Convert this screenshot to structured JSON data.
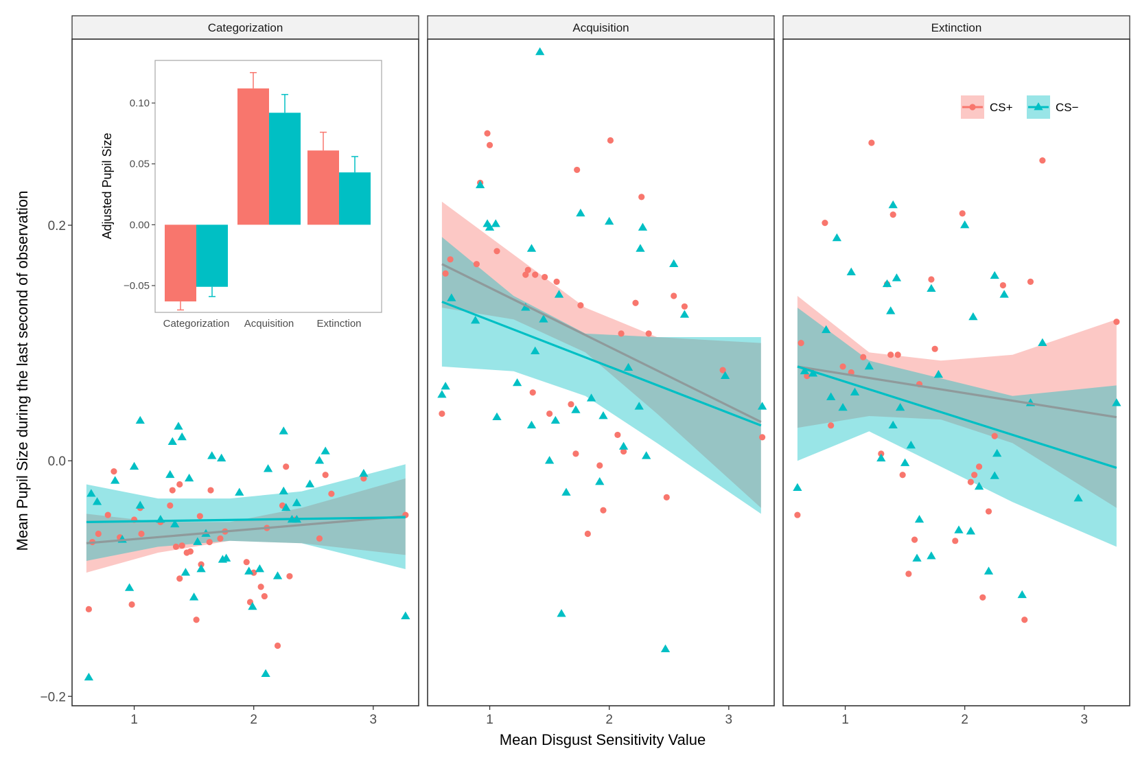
{
  "chart_data": {
    "type": "scatter",
    "xlabel": "Mean Disgust Sensitivity Value",
    "ylabel": "Mean Pupil Size during the last second of observation",
    "x_ticks": [
      1,
      2,
      3
    ],
    "x_tick_labels": [
      "1",
      "2",
      "3"
    ],
    "y_ticks": [
      -0.2,
      0.0,
      0.2
    ],
    "y_tick_labels": [
      "−0.2",
      "0.0",
      "0.2"
    ],
    "xlim": [
      0.48,
      3.38
    ],
    "ylim": [
      -0.208,
      0.358
    ],
    "colors": {
      "cs_plus": "#F8766D",
      "cs_minus": "#00BFC4",
      "overlap": "#8F9A9B"
    },
    "legend": [
      {
        "name": "CS+",
        "shape": "circle",
        "color": "#F8766D"
      },
      {
        "name": "CS−",
        "shape": "triangle",
        "color": "#00BFC4"
      }
    ],
    "legend_position": "top-right of Extinction panel",
    "panels": [
      {
        "title": "Categorization",
        "cs_plus_points": [
          [
            0.62,
            -0.126
          ],
          [
            0.65,
            -0.069
          ],
          [
            0.7,
            -0.062
          ],
          [
            0.78,
            -0.046
          ],
          [
            0.83,
            -0.009
          ],
          [
            0.88,
            -0.065
          ],
          [
            0.98,
            -0.122
          ],
          [
            1.0,
            -0.05
          ],
          [
            1.05,
            -0.04
          ],
          [
            1.06,
            -0.062
          ],
          [
            1.22,
            -0.052
          ],
          [
            1.3,
            -0.038
          ],
          [
            1.32,
            -0.025
          ],
          [
            1.35,
            -0.073
          ],
          [
            1.38,
            -0.1
          ],
          [
            1.38,
            -0.02
          ],
          [
            1.4,
            -0.072
          ],
          [
            1.44,
            -0.078
          ],
          [
            1.47,
            -0.077
          ],
          [
            1.52,
            -0.135
          ],
          [
            1.55,
            -0.047
          ],
          [
            1.56,
            -0.088
          ],
          [
            1.63,
            -0.069
          ],
          [
            1.64,
            -0.025
          ],
          [
            1.72,
            -0.066
          ],
          [
            1.76,
            -0.06
          ],
          [
            1.94,
            -0.086
          ],
          [
            1.97,
            -0.12
          ],
          [
            2.0,
            -0.095
          ],
          [
            2.06,
            -0.107
          ],
          [
            2.09,
            -0.115
          ],
          [
            2.11,
            -0.057
          ],
          [
            2.2,
            -0.157
          ],
          [
            2.24,
            -0.038
          ],
          [
            2.27,
            -0.005
          ],
          [
            2.3,
            -0.098
          ],
          [
            2.35,
            -0.05
          ],
          [
            2.55,
            -0.066
          ],
          [
            2.6,
            -0.012
          ],
          [
            2.65,
            -0.028
          ],
          [
            2.92,
            -0.015
          ],
          [
            3.27,
            -0.046
          ]
        ],
        "cs_minus_points": [
          [
            0.62,
            -0.184
          ],
          [
            0.64,
            -0.028
          ],
          [
            0.69,
            -0.035
          ],
          [
            0.84,
            -0.017
          ],
          [
            0.9,
            -0.067
          ],
          [
            0.96,
            -0.108
          ],
          [
            1.0,
            -0.005
          ],
          [
            1.05,
            0.034
          ],
          [
            1.05,
            -0.038
          ],
          [
            1.22,
            -0.05
          ],
          [
            1.3,
            -0.012
          ],
          [
            1.32,
            0.016
          ],
          [
            1.34,
            -0.054
          ],
          [
            1.37,
            0.029
          ],
          [
            1.4,
            0.02
          ],
          [
            1.43,
            -0.095
          ],
          [
            1.46,
            -0.015
          ],
          [
            1.5,
            -0.116
          ],
          [
            1.53,
            -0.069
          ],
          [
            1.56,
            -0.092
          ],
          [
            1.6,
            -0.062
          ],
          [
            1.65,
            0.004
          ],
          [
            1.73,
            0.002
          ],
          [
            1.74,
            -0.084
          ],
          [
            1.77,
            -0.083
          ],
          [
            1.88,
            -0.027
          ],
          [
            1.96,
            -0.094
          ],
          [
            1.99,
            -0.124
          ],
          [
            2.05,
            -0.092
          ],
          [
            2.1,
            -0.181
          ],
          [
            2.12,
            -0.007
          ],
          [
            2.2,
            -0.098
          ],
          [
            2.25,
            0.025
          ],
          [
            2.25,
            -0.026
          ],
          [
            2.27,
            -0.04
          ],
          [
            2.32,
            -0.05
          ],
          [
            2.36,
            -0.05
          ],
          [
            2.36,
            -0.036
          ],
          [
            2.55,
            0.0
          ],
          [
            2.6,
            0.008
          ],
          [
            2.47,
            -0.02
          ],
          [
            2.92,
            -0.011
          ],
          [
            3.27,
            -0.132
          ]
        ],
        "cs_plus_fit": {
          "x": [
            0.6,
            3.27
          ],
          "y": [
            -0.07,
            -0.047
          ]
        },
        "cs_minus_fit": {
          "x": [
            0.6,
            3.27
          ],
          "y": [
            -0.052,
            -0.048
          ]
        },
        "cs_plus_band": {
          "x": [
            0.6,
            1.2,
            1.8,
            2.4,
            3.27
          ],
          "lower": [
            -0.095,
            -0.078,
            -0.068,
            -0.07,
            -0.08
          ],
          "upper": [
            -0.045,
            -0.052,
            -0.052,
            -0.04,
            -0.015
          ]
        },
        "cs_minus_band": {
          "x": [
            0.6,
            1.2,
            1.8,
            2.4,
            3.27
          ],
          "lower": [
            -0.085,
            -0.073,
            -0.068,
            -0.07,
            -0.092
          ],
          "upper": [
            -0.02,
            -0.032,
            -0.032,
            -0.026,
            -0.003
          ]
        }
      },
      {
        "title": "Acquisition",
        "cs_plus_points": [
          [
            0.6,
            0.04
          ],
          [
            0.63,
            0.159
          ],
          [
            0.67,
            0.171
          ],
          [
            0.89,
            0.167
          ],
          [
            0.92,
            0.236
          ],
          [
            0.98,
            0.278
          ],
          [
            1.0,
            0.268
          ],
          [
            1.06,
            0.178
          ],
          [
            1.3,
            0.158
          ],
          [
            1.32,
            0.162
          ],
          [
            1.36,
            0.058
          ],
          [
            1.38,
            0.158
          ],
          [
            1.46,
            0.156
          ],
          [
            1.5,
            0.04
          ],
          [
            1.56,
            0.152
          ],
          [
            1.68,
            0.048
          ],
          [
            1.72,
            0.006
          ],
          [
            1.73,
            0.247
          ],
          [
            1.76,
            0.132
          ],
          [
            1.92,
            -0.004
          ],
          [
            1.95,
            -0.042
          ],
          [
            2.01,
            0.272
          ],
          [
            2.07,
            0.022
          ],
          [
            2.1,
            0.108
          ],
          [
            2.12,
            0.008
          ],
          [
            2.22,
            0.134
          ],
          [
            2.27,
            0.224
          ],
          [
            2.33,
            0.108
          ],
          [
            2.48,
            -0.031
          ],
          [
            2.54,
            0.14
          ],
          [
            2.63,
            0.131
          ],
          [
            2.95,
            0.077
          ],
          [
            3.28,
            0.02
          ],
          [
            1.82,
            -0.062
          ]
        ],
        "cs_minus_points": [
          [
            0.6,
            0.056
          ],
          [
            0.63,
            0.063
          ],
          [
            0.68,
            0.138
          ],
          [
            0.88,
            0.119
          ],
          [
            0.92,
            0.234
          ],
          [
            0.98,
            0.201
          ],
          [
            1.0,
            0.198
          ],
          [
            1.05,
            0.201
          ],
          [
            1.06,
            0.037
          ],
          [
            1.23,
            0.066
          ],
          [
            1.3,
            0.13
          ],
          [
            1.35,
            0.18
          ],
          [
            1.38,
            0.093
          ],
          [
            1.42,
            0.347
          ],
          [
            1.45,
            0.12
          ],
          [
            1.5,
            -0.0
          ],
          [
            1.55,
            0.034
          ],
          [
            1.58,
            0.141
          ],
          [
            1.6,
            -0.13
          ],
          [
            1.64,
            -0.027
          ],
          [
            1.72,
            0.043
          ],
          [
            1.76,
            0.21
          ],
          [
            1.92,
            -0.018
          ],
          [
            1.95,
            0.038
          ],
          [
            2.0,
            0.203
          ],
          [
            2.12,
            0.012
          ],
          [
            2.16,
            0.079
          ],
          [
            2.25,
            0.046
          ],
          [
            2.26,
            0.18
          ],
          [
            2.28,
            0.198
          ],
          [
            2.31,
            0.004
          ],
          [
            2.47,
            -0.16
          ],
          [
            2.54,
            0.167
          ],
          [
            2.63,
            0.124
          ],
          [
            2.97,
            0.072
          ],
          [
            3.28,
            0.046
          ],
          [
            1.35,
            0.03
          ],
          [
            1.85,
            0.053
          ]
        ],
        "cs_plus_fit": {
          "x": [
            0.6,
            3.27
          ],
          "y": [
            0.167,
            0.033
          ]
        },
        "cs_minus_fit": {
          "x": [
            0.6,
            3.27
          ],
          "y": [
            0.135,
            0.03
          ]
        },
        "cs_plus_band": {
          "x": [
            0.6,
            1.2,
            1.8,
            2.4,
            3.27
          ],
          "lower": [
            0.13,
            0.12,
            0.092,
            0.04,
            -0.04
          ],
          "upper": [
            0.22,
            0.175,
            0.13,
            0.105,
            0.1
          ]
        },
        "cs_minus_band": {
          "x": [
            0.6,
            1.2,
            1.8,
            2.4,
            3.27
          ],
          "lower": [
            0.08,
            0.076,
            0.055,
            0.015,
            -0.045
          ],
          "upper": [
            0.19,
            0.14,
            0.108,
            0.105,
            0.105
          ]
        }
      },
      {
        "title": "Extinction",
        "cs_plus_points": [
          [
            0.6,
            -0.046
          ],
          [
            0.63,
            0.1
          ],
          [
            0.68,
            0.072
          ],
          [
            0.83,
            0.202
          ],
          [
            0.88,
            0.03
          ],
          [
            0.98,
            0.08
          ],
          [
            1.05,
            0.075
          ],
          [
            1.15,
            0.088
          ],
          [
            1.22,
            0.27
          ],
          [
            1.3,
            0.006
          ],
          [
            1.35,
            0.15
          ],
          [
            1.38,
            0.09
          ],
          [
            1.4,
            0.209
          ],
          [
            1.44,
            0.09
          ],
          [
            1.48,
            -0.012
          ],
          [
            1.53,
            -0.096
          ],
          [
            1.58,
            -0.067
          ],
          [
            1.62,
            0.065
          ],
          [
            1.72,
            0.154
          ],
          [
            1.75,
            0.095
          ],
          [
            1.92,
            -0.068
          ],
          [
            1.98,
            0.21
          ],
          [
            2.05,
            -0.018
          ],
          [
            2.08,
            -0.012
          ],
          [
            2.15,
            -0.116
          ],
          [
            2.2,
            -0.043
          ],
          [
            2.25,
            0.021
          ],
          [
            2.32,
            0.149
          ],
          [
            2.5,
            -0.135
          ],
          [
            2.55,
            0.152
          ],
          [
            2.65,
            0.255
          ],
          [
            3.27,
            0.118
          ],
          [
            2.12,
            -0.005
          ]
        ],
        "cs_minus_points": [
          [
            0.6,
            -0.023
          ],
          [
            0.66,
            0.076
          ],
          [
            0.73,
            0.074
          ],
          [
            0.84,
            0.111
          ],
          [
            0.88,
            0.054
          ],
          [
            0.93,
            0.189
          ],
          [
            0.98,
            0.045
          ],
          [
            1.05,
            0.16
          ],
          [
            1.08,
            0.058
          ],
          [
            1.2,
            0.08
          ],
          [
            1.3,
            0.002
          ],
          [
            1.35,
            0.15
          ],
          [
            1.38,
            0.127
          ],
          [
            1.4,
            0.217
          ],
          [
            1.43,
            0.155
          ],
          [
            1.46,
            0.045
          ],
          [
            1.5,
            -0.002
          ],
          [
            1.55,
            0.013
          ],
          [
            1.6,
            -0.083
          ],
          [
            1.62,
            -0.05
          ],
          [
            1.72,
            -0.081
          ],
          [
            1.72,
            0.146
          ],
          [
            1.78,
            0.073
          ],
          [
            1.95,
            -0.059
          ],
          [
            2.0,
            0.2
          ],
          [
            2.05,
            -0.06
          ],
          [
            2.07,
            0.122
          ],
          [
            2.12,
            -0.022
          ],
          [
            2.2,
            -0.094
          ],
          [
            2.25,
            0.157
          ],
          [
            2.27,
            0.006
          ],
          [
            2.33,
            0.141
          ],
          [
            2.48,
            -0.114
          ],
          [
            2.55,
            0.049
          ],
          [
            2.65,
            0.1
          ],
          [
            2.95,
            -0.032
          ],
          [
            3.27,
            0.049
          ],
          [
            1.4,
            0.03
          ],
          [
            2.25,
            -0.013
          ]
        ],
        "cs_plus_fit": {
          "x": [
            0.6,
            3.27
          ],
          "y": [
            0.08,
            0.037
          ]
        },
        "cs_minus_fit": {
          "x": [
            0.6,
            3.27
          ],
          "y": [
            0.08,
            -0.006
          ]
        },
        "cs_plus_band": {
          "x": [
            0.6,
            1.2,
            1.8,
            2.4,
            3.27
          ],
          "lower": [
            0.028,
            0.038,
            0.035,
            0.015,
            -0.04
          ],
          "upper": [
            0.14,
            0.092,
            0.085,
            0.09,
            0.12
          ]
        },
        "cs_minus_band": {
          "x": [
            0.6,
            1.2,
            1.8,
            2.4,
            3.27
          ],
          "lower": [
            0.0,
            0.025,
            -0.005,
            -0.035,
            -0.073
          ],
          "upper": [
            0.13,
            0.085,
            0.07,
            0.055,
            0.064
          ]
        }
      }
    ],
    "inset": {
      "type": "bar",
      "ylabel": "Adjusted Pupil Size",
      "categories": [
        "Categorization",
        "Acquisition",
        "Extinction"
      ],
      "series": [
        {
          "name": "CS+",
          "color": "#F8766D",
          "values": [
            -0.063,
            0.112,
            0.061
          ],
          "errors": [
            0.007,
            0.013,
            0.015
          ]
        },
        {
          "name": "CS−",
          "color": "#00BFC4",
          "values": [
            -0.051,
            0.092,
            0.043
          ],
          "errors": [
            0.008,
            0.015,
            0.013
          ]
        }
      ],
      "y_ticks": [
        -0.05,
        0.0,
        0.05,
        0.1
      ],
      "y_tick_labels": [
        "−0.05",
        "0.00",
        "0.05",
        "0.10"
      ],
      "ylim": [
        -0.072,
        0.135
      ]
    }
  }
}
